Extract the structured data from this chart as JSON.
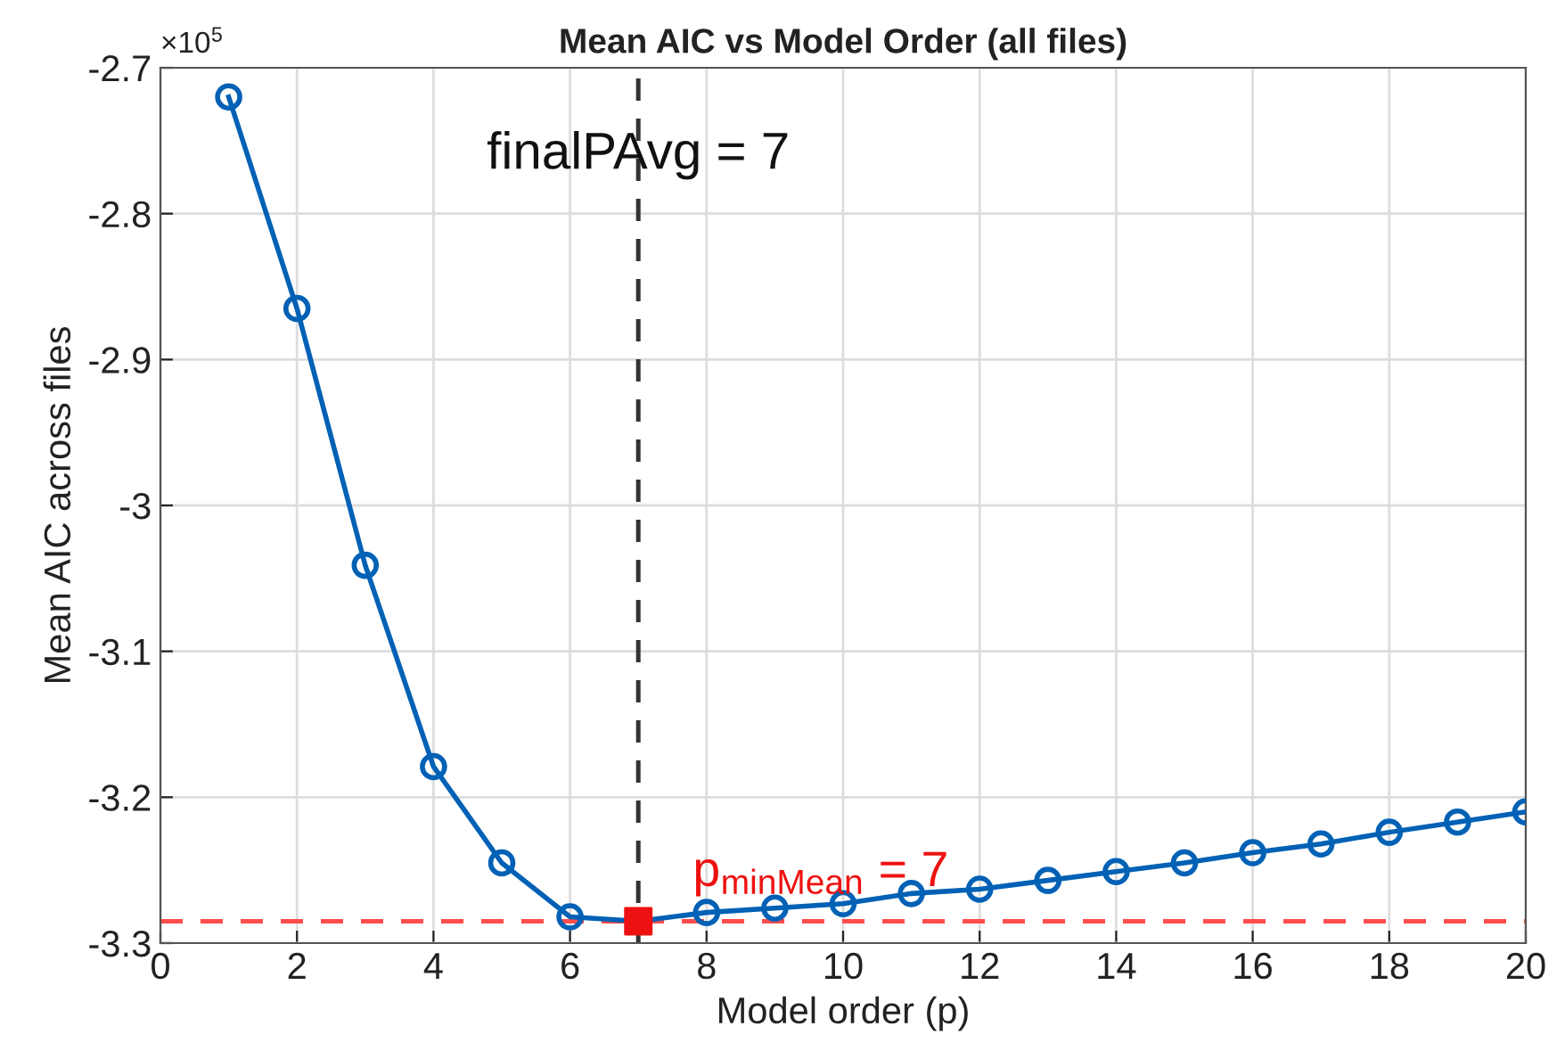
{
  "chart_data": {
    "type": "line",
    "title": "Mean AIC vs Model Order (all files)",
    "xlabel": "Model order (p)",
    "ylabel": "Mean AIC across files",
    "x": [
      1,
      2,
      3,
      4,
      5,
      6,
      7,
      8,
      9,
      10,
      11,
      12,
      13,
      14,
      15,
      16,
      17,
      18,
      19,
      20
    ],
    "series": [
      {
        "color": "#0061b5",
        "marker": "circle",
        "line_style": "solid",
        "values": [
          -2.72,
          -2.865,
          -3.041,
          -3.179,
          -3.245,
          -3.282,
          -3.285,
          -3.279,
          -3.276,
          -3.273,
          -3.266,
          -3.263,
          -3.257,
          -3.251,
          -3.245,
          -3.238,
          -3.232,
          -3.224,
          -3.217,
          -3.21
        ]
      },
      {
        "type": "scatter",
        "color": "#ee1111",
        "marker": "square",
        "x": [
          7
        ],
        "values": [
          -3.285
        ]
      }
    ],
    "ref_lines": [
      {
        "axis": "x",
        "value": 7,
        "label": "finalPAvg = 7",
        "color": "#333333",
        "line_style": "dashed"
      },
      {
        "axis": "y",
        "value": -3.285,
        "color": "#ff4d4d",
        "line_style": "dashed"
      }
    ],
    "annotations": [
      "×10$^{5}$",
      {
        "text": "p$_{minMean}$ = 7",
        "x": 7,
        "y": -3.285
      }
    ],
    "xlim": [
      0,
      20
    ],
    "xticks": [
      0,
      2,
      4,
      6,
      8,
      10,
      12,
      14,
      16,
      18,
      20
    ],
    "ylim": [
      -3.3,
      -2.7
    ],
    "yticks": [
      -3.3,
      -3.2,
      -3.1,
      -3,
      -2.9,
      -2.8,
      -2.7
    ],
    "grid": true,
    "legend": false
  }
}
